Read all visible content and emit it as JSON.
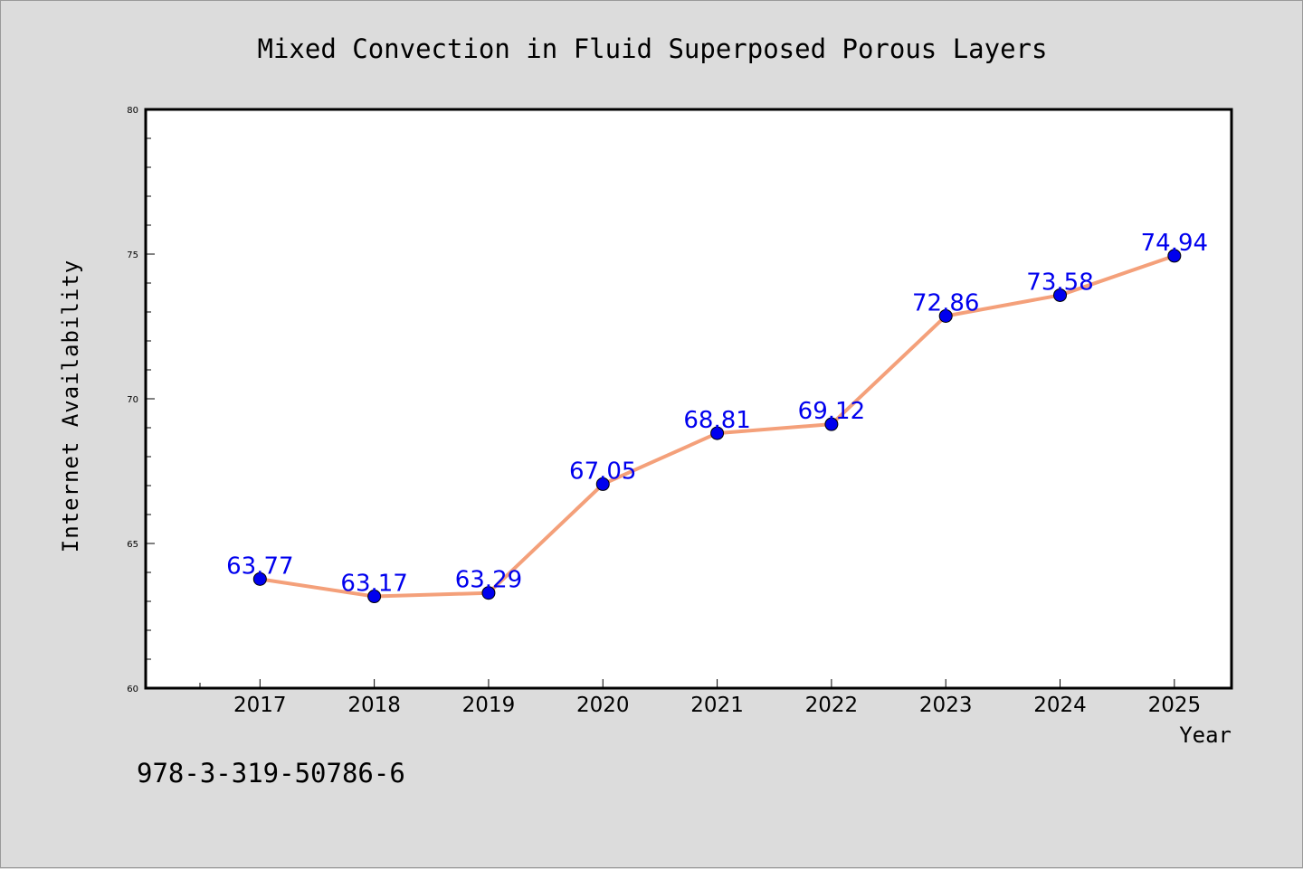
{
  "chart_data": {
    "type": "line",
    "title": "Mixed Convection in Fluid Superposed Porous Layers",
    "xlabel": "Year",
    "ylabel": "Internet Availability",
    "ylim": [
      60,
      80
    ],
    "yticks": [
      60,
      65,
      70,
      75,
      80
    ],
    "categories": [
      "2017",
      "2018",
      "2019",
      "2020",
      "2021",
      "2022",
      "2023",
      "2024",
      "2025"
    ],
    "series": [
      {
        "values": [
          63.77,
          63.17,
          63.29,
          67.05,
          68.81,
          69.12,
          72.86,
          73.58,
          74.94
        ],
        "line_color": "#f4a07a",
        "marker_color": "#0000ee"
      }
    ],
    "data_labels": [
      "63.77",
      "63.17",
      "63.29",
      "67.05",
      "68.81",
      "69.12",
      "72.86",
      "73.58",
      "74.94"
    ],
    "grid": false,
    "legend": "none"
  },
  "footer": {
    "isbn": "978-3-319-50786-6"
  },
  "colors": {
    "background": "#dcdcdc",
    "plot_background": "#ffffff",
    "line": "#f4a07a",
    "marker": "#0000ee",
    "label": "#0000ee"
  }
}
